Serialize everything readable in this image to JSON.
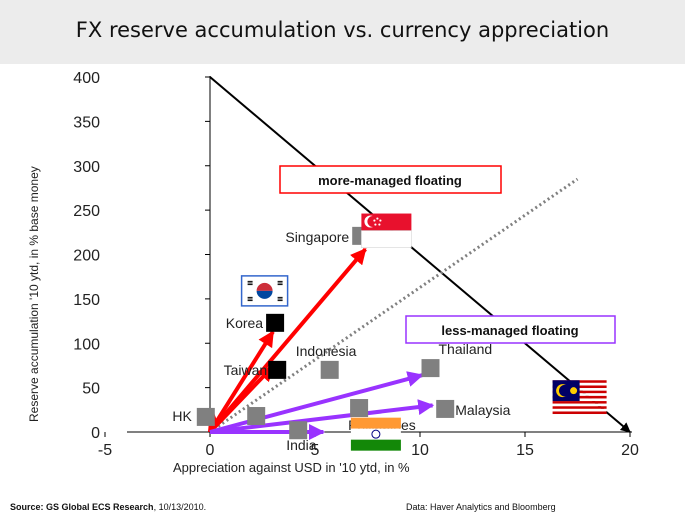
{
  "title": "FX reserve accumulation vs. currency appreciation",
  "chart_data": {
    "type": "scatter",
    "xlabel": "Appreciation against USD in '10 ytd, in %",
    "ylabel": "Reserve accumulation '10 ytd, in % base money",
    "xlim": [
      -5,
      20
    ],
    "ylim": [
      0,
      400
    ],
    "x_ticks": [
      "-5",
      "0",
      "5",
      "10",
      "15",
      "20"
    ],
    "y_ticks": [
      "0",
      "50",
      "100",
      "150",
      "200",
      "250",
      "300",
      "350",
      "400"
    ],
    "points": [
      {
        "label": "HK",
        "x": -0.2,
        "y": 17,
        "color": "#808080"
      },
      {
        "label": "",
        "x": 2.2,
        "y": 18,
        "color": "#808080"
      },
      {
        "label": "India",
        "x": 4.2,
        "y": 2,
        "color": "#808080"
      },
      {
        "label": "Korea",
        "x": 3.1,
        "y": 123,
        "color": "#000000"
      },
      {
        "label": "Taiwan",
        "x": 3.2,
        "y": 70,
        "color": "#000000"
      },
      {
        "label": "Indonesia",
        "x": 5.7,
        "y": 70,
        "color": "#808080"
      },
      {
        "label": "Philippines",
        "x": 7.1,
        "y": 27,
        "color": "#808080"
      },
      {
        "label": "Singapore",
        "x": 7.2,
        "y": 221,
        "color": "#808080"
      },
      {
        "label": "Thailand",
        "x": 10.5,
        "y": 72,
        "color": "#808080"
      },
      {
        "label": "Malaysia",
        "x": 11.2,
        "y": 26,
        "color": "#808080"
      }
    ],
    "arrows": [
      {
        "group": "more-managed floating",
        "color": "#ff0000",
        "to": [
          7.4,
          206
        ]
      },
      {
        "group": "more-managed floating",
        "color": "#ff0000",
        "to": [
          3.0,
          113
        ]
      },
      {
        "group": "more-managed floating",
        "color": "#ff0000",
        "to": [
          3.0,
          74
        ]
      },
      {
        "group": "more-managed floating",
        "color": "#ff0000",
        "to": [
          0.1,
          25
        ]
      },
      {
        "group": "less-managed floating",
        "color": "#9933ff",
        "to": [
          10.1,
          64
        ]
      },
      {
        "group": "less-managed floating",
        "color": "#9933ff",
        "to": [
          10.6,
          30
        ]
      },
      {
        "group": "less-managed floating",
        "color": "#9933ff",
        "to": [
          5.4,
          0
        ]
      }
    ],
    "reference_lines": [
      {
        "style": "solid",
        "color": "#000000",
        "from": [
          0,
          400
        ],
        "to": [
          20,
          0
        ]
      },
      {
        "style": "dotted",
        "color": "#808080",
        "from": [
          0,
          0
        ],
        "to": [
          17.5,
          285
        ]
      }
    ],
    "annotations": {
      "more_managed": "more-managed floating",
      "less_managed": "less-managed floating"
    },
    "flags": [
      {
        "country": "Singapore",
        "x": 8.4,
        "y": 227
      },
      {
        "country": "Korea",
        "x": 2.6,
        "y": 159
      },
      {
        "country": "India",
        "x": 7.9,
        "y": -3
      },
      {
        "country": "Malaysia",
        "x": 17.6,
        "y": 38
      }
    ]
  },
  "footer": {
    "source_label": "Source: GS Global ECS Research",
    "source_date": ", 10/13/2010.",
    "data_note": "Data: Haver Analytics  and Bloomberg"
  }
}
